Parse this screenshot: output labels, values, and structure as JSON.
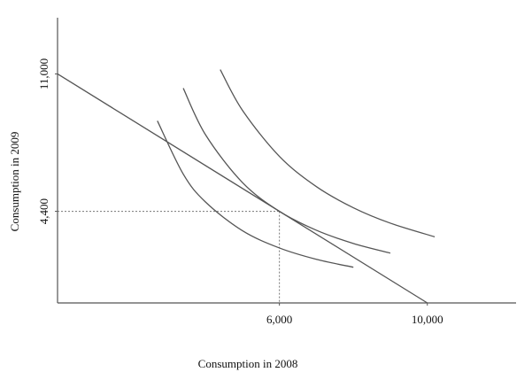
{
  "chart_data": {
    "type": "line",
    "x_label": "Consumption in 2008",
    "y_label": "Consumption in 2009",
    "xlim": [
      0,
      12400
    ],
    "ylim": [
      0,
      13700
    ],
    "xticks": [
      {
        "value": 6000,
        "label": "6,000"
      },
      {
        "value": 10000,
        "label": "10,000"
      }
    ],
    "yticks": [
      {
        "value": 4400,
        "label": "4,400"
      },
      {
        "value": 11000,
        "label": "11,000"
      }
    ],
    "tick_guides": true,
    "color": "#555555",
    "series": [
      {
        "x": [
          0,
          10000
        ],
        "values": [
          11000,
          0
        ]
      }
    ],
    "curves": [
      {
        "x": [
          2700,
          3400,
          4000,
          5000,
          6000,
          7000,
          8000
        ],
        "values": [
          8746,
          6188,
          4850,
          3470,
          2640,
          2095,
          1715
        ]
      },
      {
        "x": [
          3400,
          4000,
          5000,
          6000,
          7000,
          8000,
          9000
        ],
        "values": [
          10315,
          8083,
          5784,
          4400,
          3491,
          2858,
          2395
        ]
      },
      {
        "x": [
          4400,
          5000,
          6000,
          7000,
          8000,
          9000,
          10200
        ],
        "values": [
          11210,
          9254,
          7040,
          5586,
          4572,
          3832,
          3176
        ]
      }
    ]
  }
}
